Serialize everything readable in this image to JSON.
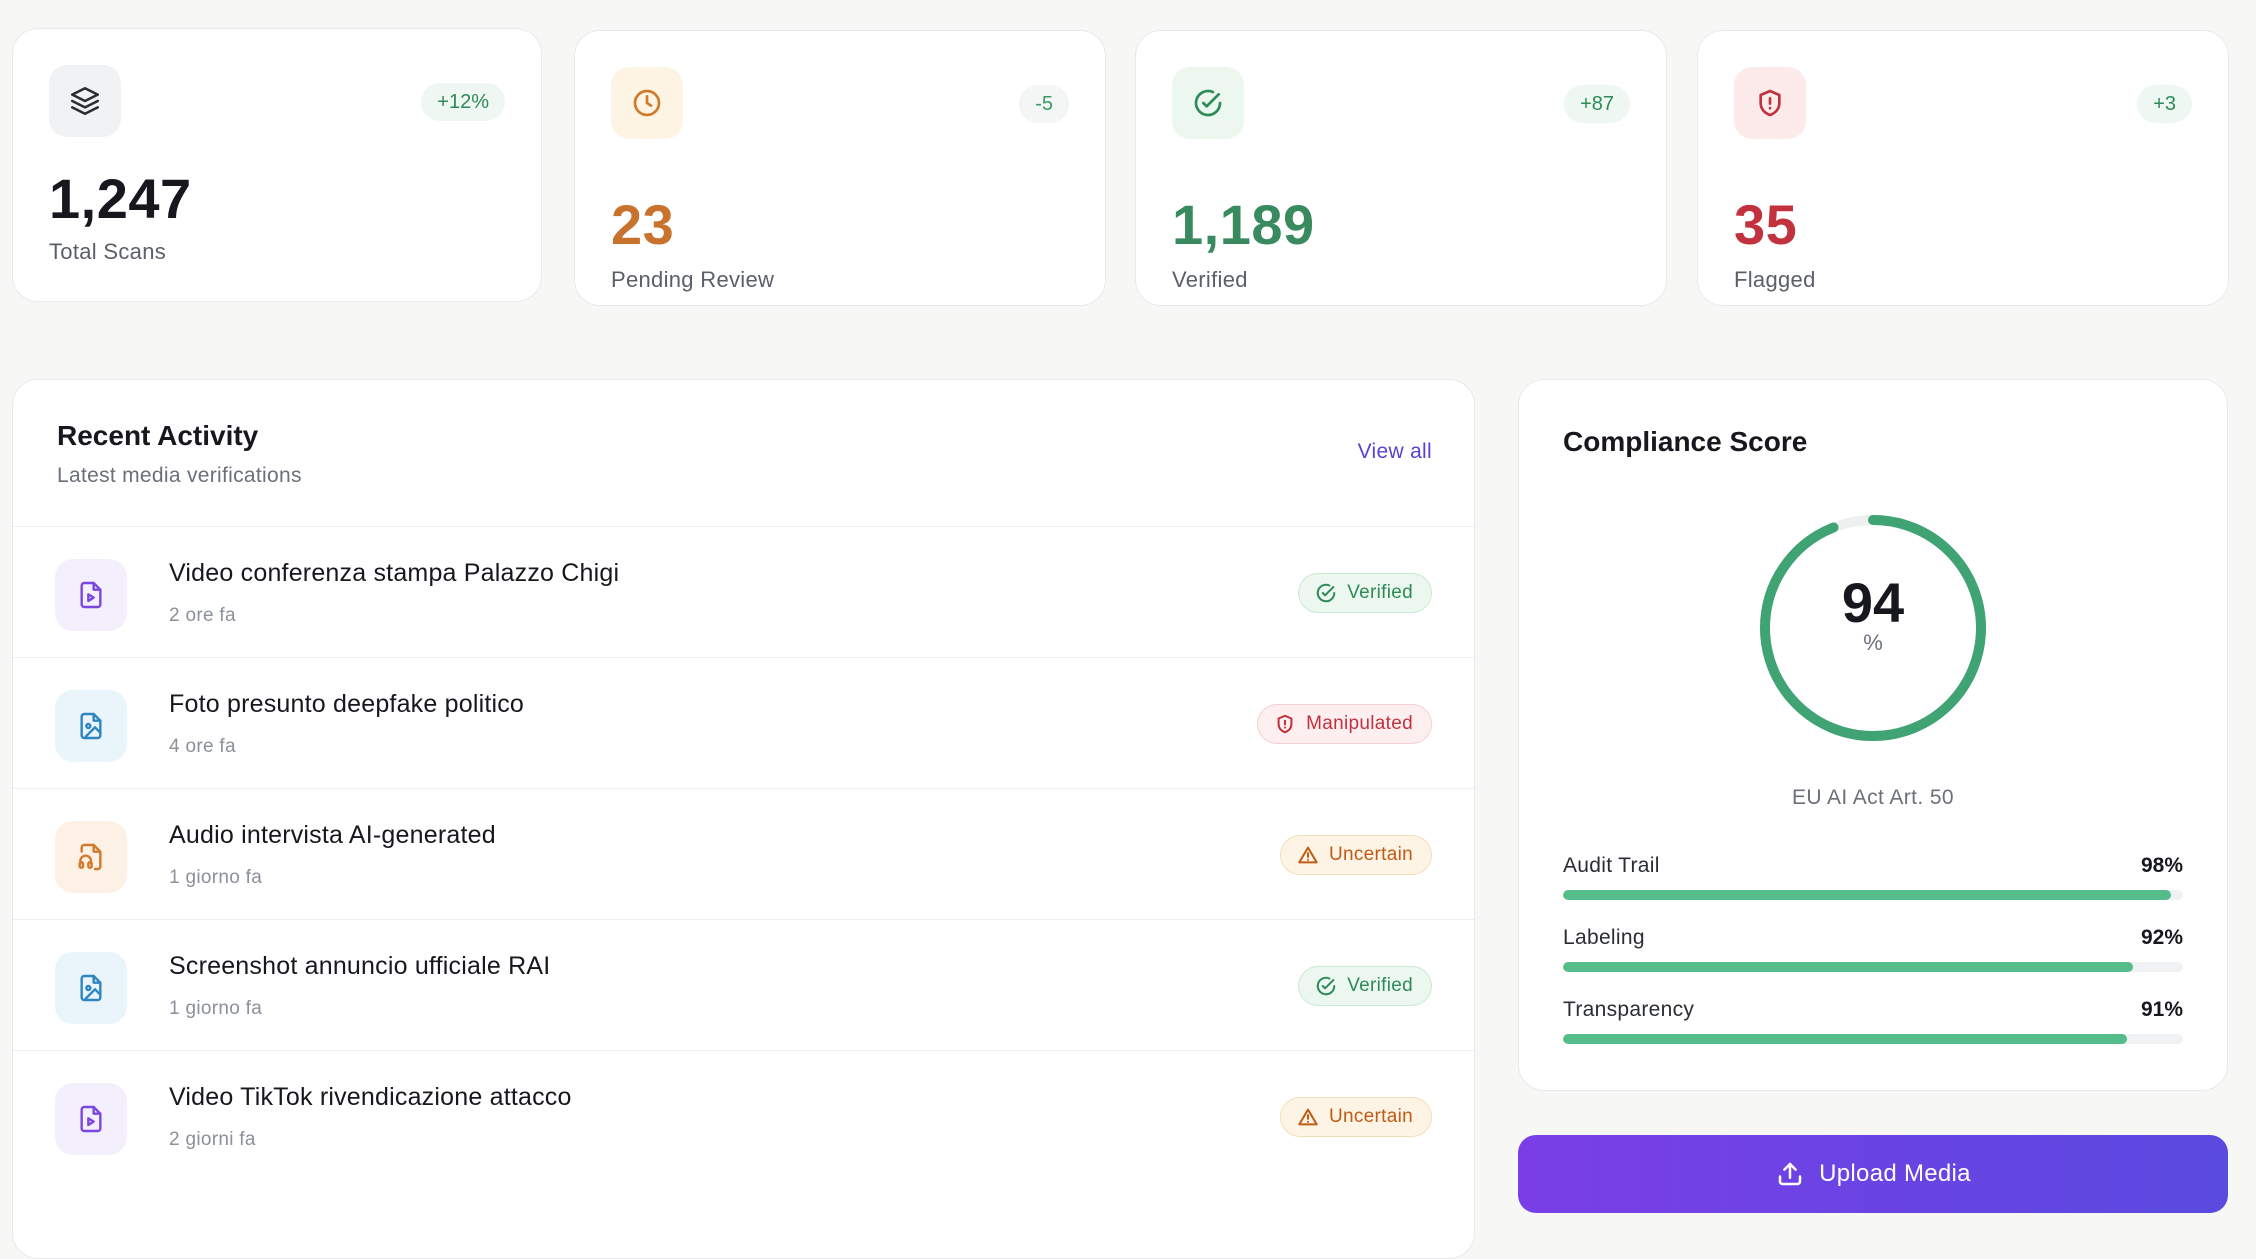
{
  "stats": [
    {
      "value": "1,247",
      "label": "Total Scans",
      "delta": "+12%",
      "icon": "layers-icon",
      "value_color": "#16181d",
      "delta_bg": "#eef7f1",
      "delta_color": "#2e8a57",
      "icon_bg": "#f1f2f3",
      "icon_color": "#2a2d33"
    },
    {
      "value": "23",
      "label": "Pending Review",
      "delta": "-5",
      "icon": "clock-icon",
      "value_color": "#c7732d",
      "delta_bg": "#f3f6f4",
      "delta_color": "#3d9a64",
      "icon_bg": "#fdf4e4",
      "icon_color": "#d07a2d"
    },
    {
      "value": "1,189",
      "label": "Verified",
      "delta": "+87",
      "icon": "check-circle-icon",
      "value_color": "#3a8a60",
      "delta_bg": "#eef7f1",
      "delta_color": "#2e8a57",
      "icon_bg": "#ebf7ef",
      "icon_color": "#2e8a57"
    },
    {
      "value": "35",
      "label": "Flagged",
      "delta": "+3",
      "icon": "shield-alert-icon",
      "value_color": "#c2313e",
      "delta_bg": "#eef7f1",
      "delta_color": "#2e8a57",
      "icon_bg": "#fdebec",
      "icon_color": "#c2313e"
    }
  ],
  "activity": {
    "title": "Recent Activity",
    "subtitle": "Latest media verifications",
    "view_all": "View all",
    "items": [
      {
        "name": "Video conferenza stampa Palazzo Chigi",
        "time": "2 ore fa",
        "type": "video",
        "status": "Verified",
        "status_kind": "verified"
      },
      {
        "name": "Foto presunto deepfake politico",
        "time": "4 ore fa",
        "type": "image",
        "status": "Manipulated",
        "status_kind": "manip"
      },
      {
        "name": "Audio intervista AI-generated",
        "time": "1 giorno fa",
        "type": "audio",
        "status": "Uncertain",
        "status_kind": "uncertain"
      },
      {
        "name": "Screenshot annuncio ufficiale RAI",
        "time": "1 giorno fa",
        "type": "image",
        "status": "Verified",
        "status_kind": "verified"
      },
      {
        "name": "Video TikTok rivendicazione attacco",
        "time": "2 giorni fa",
        "type": "video",
        "status": "Uncertain",
        "status_kind": "uncertain"
      }
    ]
  },
  "compliance": {
    "title": "Compliance Score",
    "score": "94",
    "score_fraction": 0.94,
    "unit": "%",
    "subtitle": "EU AI Act Art. 50",
    "metrics": [
      {
        "label": "Audit Trail",
        "value": "98%",
        "fraction": 0.98
      },
      {
        "label": "Labeling",
        "value": "92%",
        "fraction": 0.92
      },
      {
        "label": "Transparency",
        "value": "91%",
        "fraction": 0.91
      }
    ]
  },
  "upload": {
    "label": "Upload Media",
    "icon": "upload-icon"
  },
  "colors": {
    "accent": "#5b3fd6",
    "success": "#2e8a57",
    "danger": "#c2313e",
    "warning": "#c05a14",
    "gauge": "#3fa374"
  }
}
